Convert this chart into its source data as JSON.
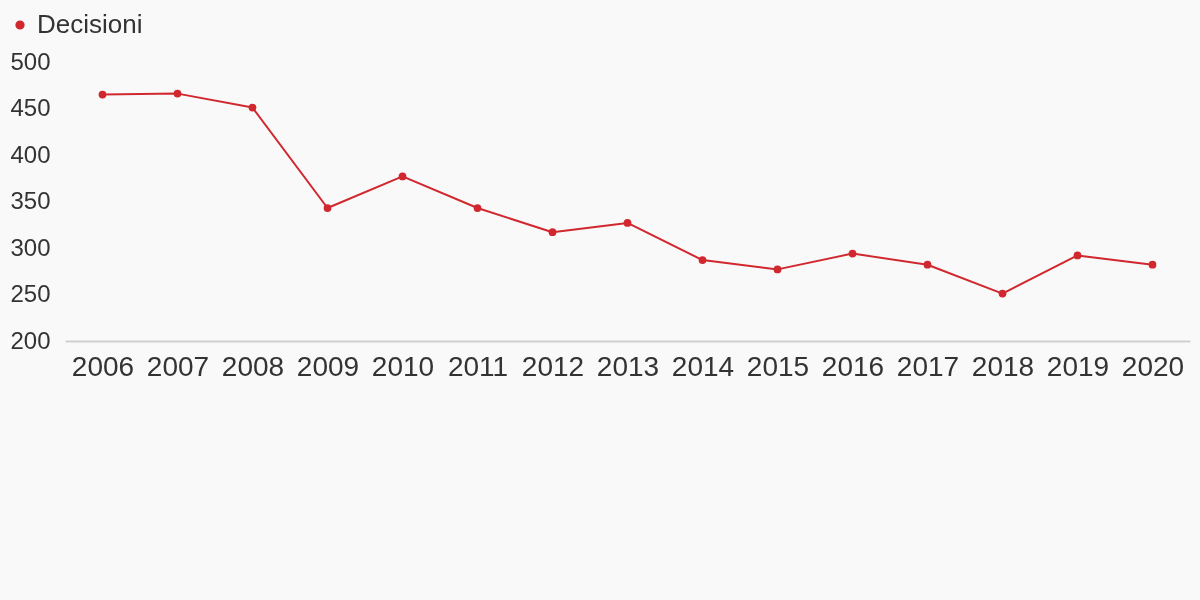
{
  "chart_data": {
    "type": "line",
    "categories": [
      "2006",
      "2007",
      "2008",
      "2009",
      "2010",
      "2011",
      "2012",
      "2013",
      "2014",
      "2015",
      "2016",
      "2017",
      "2018",
      "2019",
      "2020"
    ],
    "series": [
      {
        "name": "Decisioni",
        "color": "#d0282e",
        "values": [
          465,
          466,
          451,
          343,
          377,
          343,
          317,
          327,
          287,
          277,
          294,
          282,
          251,
          292,
          282
        ]
      }
    ],
    "ylim": [
      200,
      500
    ],
    "yticks": [
      200,
      250,
      300,
      350,
      400,
      450,
      500
    ],
    "grid": false,
    "legend": "top left",
    "marker": "circle",
    "line_style": "solid"
  }
}
